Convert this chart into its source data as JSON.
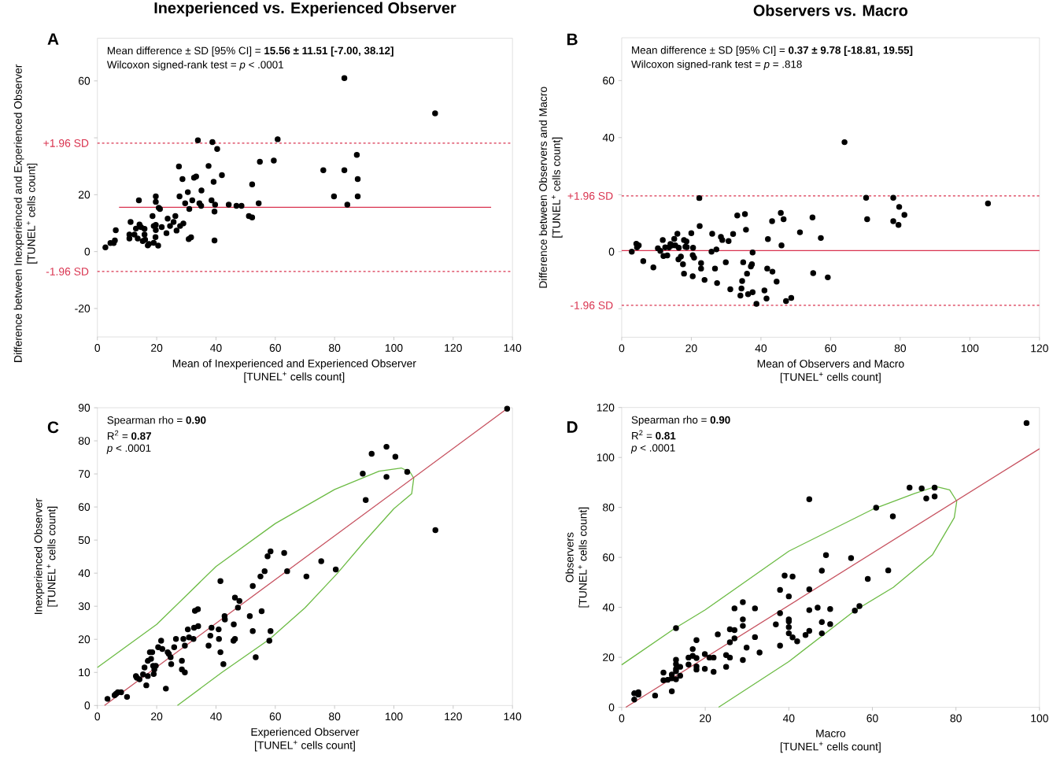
{
  "chart_data": [
    {
      "type": "scatter",
      "title": "Inexperienced vs. Experienced Observer",
      "xlabel": "Mean of Inexperienced and Experienced Observer [TUNEL$^{+}$ cells count]",
      "ylabel": "Difference between Inexperienced and Experienced Observer [TUNEL$^{+}$ cells count]",
      "annotations": [
        "A",
        "Mean difference ± SD [95% CI] = **15.56 ± 11.51 [-7.00, 38.12]**",
        "Wilcoxon signed-rank test = *p* < .0001"
      ],
      "xlim": [
        0,
        140
      ],
      "xticks": [
        0,
        20,
        40,
        60,
        80,
        100,
        120,
        140
      ],
      "ylim": [
        -30,
        75
      ],
      "yticks": [
        -20,
        0,
        20,
        {
          "value": 40,
          "label": null
        },
        60
      ],
      "ref_lines": [
        {
          "axis": "y",
          "value": 38.12,
          "label": "+1.96 SD",
          "color": "#d9334f",
          "line_style": "dashed"
        },
        {
          "axis": "y",
          "value": -7.0,
          "label": "-1.96 SD",
          "color": "#d9334f",
          "line_style": "dashed"
        }
      ],
      "series": [
        {
          "color": "#000000",
          "marker": "circle",
          "x": [
            2.7,
            4.4,
            5.5,
            5.9,
            6.2,
            10.8,
            10.8,
            11.2,
            12.5,
            13.0,
            13.6,
            14.0,
            14.2,
            14.7,
            15.3,
            15.9,
            15.9,
            16.1,
            17.0,
            17.4,
            18.6,
            19.0,
            19.0,
            19.6,
            19.7,
            19.7,
            19.7,
            19.7,
            20.5,
            20.7,
            21.1,
            21.7,
            23.3,
            23.7,
            24.5,
            25.7,
            26.3,
            26.7,
            27.5,
            27.7,
            27.9,
            28.7,
            29.0,
            29.6,
            30.5,
            30.8,
            31.0,
            31.6,
            32.0,
            32.6,
            33.3,
            33.9,
            34.4,
            35.0,
            35.1,
            37.5,
            38.5,
            38.8,
            39.2,
            39.5,
            39.5,
            39.7,
            40.4,
            42.0,
            44.3,
            46.9,
            48.6,
            51.1,
            52.2,
            52.2,
            54.4,
            54.8,
            59.5,
            60.8,
            76.2,
            79.8,
            83.3,
            83.3,
            84.3,
            87.5,
            87.8,
            87.8,
            113.9
          ],
          "values": [
            1.5,
            3.0,
            3.0,
            3.9,
            7.5,
            6.0,
            4.6,
            10.4,
            6.0,
            8.1,
            4.6,
            18.0,
            9.5,
            8.6,
            3.7,
            6.0,
            8.0,
            4.2,
            2.2,
            2.7,
            12.5,
            3.1,
            9.0,
            5.1,
            19.4,
            17.5,
            9.4,
            7.6,
            2.1,
            15.4,
            15.0,
            8.6,
            6.5,
            11.6,
            9.0,
            10.4,
            12.5,
            7.4,
            29.9,
            19.4,
            9.0,
            25.5,
            9.9,
            17.0,
            20.9,
            4.4,
            15.0,
            5.0,
            18.0,
            26.0,
            26.4,
            39.1,
            17.0,
            16.1,
            21.5,
            30.1,
            18.0,
            38.5,
            24.5,
            14.1,
            3.9,
            16.5,
            36.1,
            26.9,
            16.5,
            16.1,
            16.1,
            12.5,
            12.0,
            23.6,
            17.0,
            31.6,
            32.0,
            39.5,
            28.6,
            19.4,
            61.0,
            28.6,
            16.5,
            34.0,
            25.5,
            19.4,
            48.6
          ]
        },
        {
          "type": "line",
          "color": "#d9334f",
          "marker": "none",
          "line_style": "solid",
          "x": [
            7.3,
            132.8
          ],
          "values": [
            15.56,
            15.56
          ]
        }
      ]
    },
    {
      "type": "scatter",
      "title": "Observers vs. Macro",
      "xlabel": "Mean of Observers and Macro [TUNEL$^{+}$ cells count]",
      "ylabel": "Difference between Observers and Macro [TUNEL$^{+}$ cells count]",
      "annotations": [
        "B",
        "Mean difference ± SD [95% CI] = **0.37 ± 9.78 [-18.81, 19.55]**",
        "Wilcoxon signed-rank test = *p* = .818"
      ],
      "xlim": [
        0,
        120
      ],
      "xticks": [
        0,
        20,
        40,
        60,
        80,
        100,
        120
      ],
      "ylim": [
        -30,
        75
      ],
      "yticks": [
        {
          "value": -20,
          "label": null
        },
        0,
        {
          "value": 20,
          "label": null
        },
        40,
        60
      ],
      "ref_lines": [
        {
          "axis": "y",
          "value": 19.55,
          "label": "+1.96 SD",
          "color": "#d9334f",
          "line_style": "dashed"
        },
        {
          "axis": "y",
          "value": -18.81,
          "label": "-1.96 SD",
          "color": "#d9334f",
          "line_style": "dashed"
        },
        {
          "axis": "y",
          "value": 0.37,
          "color": "#d9334f",
          "line_style": "solid"
        }
      ],
      "series": [
        {
          "color": "#000000",
          "marker": "circle",
          "x": [
            2.9,
            4.2,
            4.4,
            4.9,
            6.2,
            9.1,
            10.4,
            11.1,
            11.8,
            12.0,
            12.5,
            13.1,
            13.6,
            14.0,
            14.5,
            15.1,
            15.4,
            16.0,
            16.3,
            16.4,
            17.0,
            17.6,
            17.9,
            17.9,
            18.3,
            18.6,
            18.7,
            20.0,
            20.4,
            20.5,
            20.4,
            20.8,
            22.3,
            22.4,
            22.8,
            22.8,
            23.8,
            25.8,
            26.0,
            26.8,
            27.2,
            27.4,
            28.5,
            28.9,
            29.9,
            30.7,
            31.2,
            32.0,
            33.2,
            34.1,
            34.4,
            34.6,
            34.9,
            35.4,
            35.7,
            36.0,
            36.3,
            37.1,
            37.4,
            37.6,
            37.6,
            38.7,
            41.0,
            41.6,
            41.8,
            42.0,
            43.2,
            43.3,
            44.5,
            45.7,
            45.9,
            46.5,
            47.2,
            48.7,
            51.2,
            54.8,
            55.0,
            57.2,
            59.2,
            64.0,
            70.2,
            70.5,
            78.0,
            78.0,
            79.5,
            79.7,
            81.2,
            105.2
          ],
          "values": [
            0.0,
            2.8,
            1.5,
            2.2,
            -3.3,
            -5.5,
            1.2,
            0.3,
            4.1,
            -1.5,
            1.5,
            -1.3,
            1.5,
            2.7,
            2.2,
            4.5,
            2.2,
            6.3,
            -2.7,
            1.4,
            -1.7,
            -4.4,
            4.1,
            -7.7,
            1.7,
            3.6,
            1.6,
            6.5,
            -1.2,
            1.4,
            -8.6,
            -2.1,
            18.8,
            9.0,
            -4.0,
            -5.9,
            -9.9,
            0.0,
            6.3,
            -5.9,
            0.8,
            -11.0,
            5.2,
            4.1,
            -3.7,
            3.7,
            -13.2,
            6.2,
            12.7,
            -15.4,
            -12.9,
            -10.3,
            -3.7,
            13.2,
            7.7,
            -7.7,
            -14.9,
            -5.2,
            -4.4,
            -14.2,
            -0.3,
            -18.3,
            -13.6,
            -16.4,
            -5.9,
            4.4,
            10.7,
            -7.0,
            -10.5,
            13.6,
            2.2,
            11.4,
            -17.3,
            -16.2,
            6.8,
            12.0,
            -7.5,
            4.8,
            -9.0,
            38.4,
            18.9,
            11.4,
            18.9,
            10.7,
            9.4,
            15.7,
            12.9,
            16.9
          ]
        }
      ]
    },
    {
      "type": "scatter",
      "xlabel": "Experienced Observer [TUNEL$^{+}$ cells count]",
      "ylabel": "Inexperienced Observer [TUNEL$^{+}$ cells count]",
      "annotations": [
        "C",
        "Spearman rho = **0.90**",
        "R$^{2}$ = **0.87**",
        "*p* < .0001"
      ],
      "xlim": [
        0,
        140
      ],
      "xticks": [
        0,
        20,
        40,
        60,
        80,
        100,
        120,
        140
      ],
      "ylim": [
        0,
        90
      ],
      "yticks": [
        0,
        10,
        20,
        30,
        40,
        50,
        60,
        70,
        80,
        90
      ],
      "series": [
        {
          "type": "line",
          "color": "#6cbb44",
          "marker": "none",
          "line_style": "solid",
          "x": [
            0,
            20,
            40,
            60,
            80,
            95,
            102.5,
            105.5,
            106.7,
            106,
            100,
            90,
            81,
            70,
            58,
            42,
            27
          ],
          "values": [
            11.5,
            24.5,
            42,
            55,
            65.3,
            70.8,
            71.8,
            70.5,
            68.7,
            64,
            59.5,
            49.5,
            40,
            29.5,
            20,
            10,
            0
          ]
        },
        {
          "type": "line",
          "color": "#c6505e",
          "marker": "none",
          "line_style": "solid",
          "x": [
            2.4,
            138.6
          ],
          "values": [
            0,
            90
          ]
        },
        {
          "color": "#000000",
          "marker": "circle",
          "x": [
            3.4,
            5.8,
            6.3,
            6.9,
            8.0,
            10.0,
            13.0,
            13.3,
            14.2,
            15.4,
            15.9,
            16.5,
            17.0,
            17.0,
            17.7,
            18.1,
            18.5,
            18.8,
            19.0,
            19.2,
            19.7,
            20.5,
            21.5,
            21.9,
            23.1,
            23.7,
            24.1,
            24.7,
            24.9,
            25.9,
            26.5,
            28.5,
            28.5,
            29.0,
            29.5,
            29.5,
            30.5,
            30.9,
            32.4,
            32.6,
            32.9,
            33.9,
            34.0,
            37.5,
            38.1,
            38.5,
            40.9,
            41.0,
            41.5,
            41.5,
            42.5,
            42.9,
            43.0,
            46.0,
            45.9,
            46.4,
            46.4,
            47.4,
            47.9,
            51.4,
            52.4,
            52.4,
            53.4,
            55.0,
            55.4,
            56.4,
            57.4,
            58.0,
            58.4,
            58.4,
            63.0,
            64.0,
            70.5,
            75.5,
            80.4,
            89.5,
            90.5,
            92.5,
            97.5,
            97.5,
            100.5,
            104.5,
            114.0,
            138.2
          ],
          "values": [
            2.0,
            3.1,
            3.5,
            4.0,
            4.0,
            2.6,
            8.9,
            8.4,
            7.9,
            9.4,
            11.5,
            6.1,
            13.5,
            8.9,
            16.1,
            14.1,
            16.1,
            12.0,
            9.5,
            10.9,
            12.0,
            17.6,
            19.6,
            17.1,
            5.1,
            16.1,
            15.6,
            14.6,
            12.5,
            17.6,
            20.1,
            13.5,
            10.9,
            20.1,
            18.1,
            10.0,
            23.0,
            20.6,
            20.1,
            23.5,
            28.6,
            29.1,
            24.0,
            18.1,
            21.1,
            23.5,
            23.0,
            20.1,
            37.6,
            16.1,
            12.5,
            27.0,
            26.0,
            24.5,
            19.6,
            20.1,
            32.6,
            29.6,
            31.6,
            27.0,
            36.1,
            22.5,
            14.6,
            39.0,
            28.5,
            40.6,
            45.1,
            19.6,
            46.6,
            22.5,
            46.1,
            40.6,
            39.0,
            43.6,
            41.1,
            70.1,
            62.1,
            76.1,
            78.2,
            69.1,
            75.2,
            70.6,
            53.0,
            89.7
          ]
        }
      ]
    },
    {
      "type": "scatter",
      "xlabel": "Macro [TUNEL$^{+}$ cells count]",
      "ylabel": "Observers [TUNEL$^{+}$ cells count]",
      "annotations": [
        "D",
        "Spearman rho = **0.90**",
        "R$^{2}$ = **0.81**",
        "*p* < .0001"
      ],
      "xlim": [
        0,
        100
      ],
      "xticks": [
        0,
        20,
        40,
        60,
        80,
        100
      ],
      "ylim": [
        0,
        120
      ],
      "yticks": [
        0,
        20,
        40,
        60,
        80,
        100,
        120
      ],
      "series": [
        {
          "type": "line",
          "color": "#6cbb44",
          "marker": "none",
          "line_style": "solid",
          "x": [
            0,
            12.8,
            20,
            40,
            60,
            70,
            75.2,
            78.5,
            80.2,
            79.6,
            74.4,
            65,
            55.8,
            40,
            23.2
          ],
          "values": [
            17,
            31.7,
            39,
            62.5,
            79.2,
            85.5,
            88.4,
            87,
            82.5,
            75.9,
            61.1,
            48,
            38.7,
            18.3,
            0
          ]
        },
        {
          "type": "line",
          "color": "#c6505e",
          "marker": "none",
          "line_style": "solid",
          "x": [
            1.0,
            100
          ],
          "values": [
            0,
            103.5
          ]
        },
        {
          "color": "#000000",
          "marker": "circle",
          "x": [
            3.0,
            3.0,
            4.0,
            4.0,
            8.0,
            10.0,
            10.0,
            11.0,
            12.0,
            12.0,
            12.0,
            13.0,
            13.0,
            13.0,
            13.0,
            13.0,
            13.0,
            14.0,
            14.0,
            16.0,
            16.0,
            17.0,
            17.0,
            17.9,
            17.9,
            17.9,
            17.9,
            19.9,
            19.9,
            21.0,
            22.0,
            22.0,
            23.0,
            25.0,
            25.0,
            25.9,
            25.9,
            25.9,
            27.0,
            27.0,
            27.0,
            29.0,
            29.0,
            29.0,
            29.0,
            29.9,
            31.9,
            31.9,
            33.0,
            36.9,
            37.9,
            37.9,
            37.9,
            39.0,
            40.0,
            40.0,
            40.0,
            40.0,
            40.0,
            40.9,
            40.9,
            42.0,
            44.0,
            44.9,
            44.9,
            44.9,
            44.9,
            46.9,
            47.9,
            47.9,
            47.9,
            48.9,
            49.9,
            49.9,
            54.9,
            55.8,
            56.9,
            58.9,
            60.9,
            63.8,
            64.9,
            68.9,
            71.8,
            72.9,
            74.9,
            74.9,
            96.9
          ],
          "values": [
            5.6,
            3.1,
            6.0,
            5.1,
            4.7,
            13.9,
            10.8,
            11.0,
            6.4,
            13.1,
            11.6,
            31.7,
            19.0,
            17.3,
            15.3,
            14.4,
            11.2,
            12.6,
            16.2,
            19.9,
            17.1,
            23.3,
            20.6,
            26.9,
            19.7,
            16.3,
            15.1,
            21.3,
            15.4,
            19.9,
            19.9,
            14.2,
            29.2,
            20.9,
            16.2,
            31.2,
            26.0,
            19.9,
            39.6,
            30.9,
            27.6,
            42.1,
            35.2,
            32.6,
            18.9,
            23.9,
            39.6,
            28.1,
            21.9,
            33.2,
            47.0,
            37.7,
            24.7,
            52.7,
            44.4,
            35.2,
            34.4,
            32.1,
            29.6,
            52.3,
            28.0,
            26.4,
            28.9,
            83.3,
            47.2,
            38.9,
            30.6,
            39.9,
            54.7,
            34.1,
            29.6,
            60.9,
            39.3,
            33.3,
            59.7,
            38.7,
            40.5,
            51.4,
            79.9,
            54.8,
            76.4,
            87.9,
            87.6,
            83.6,
            87.9,
            84.4,
            113.8
          ]
        }
      ]
    }
  ]
}
